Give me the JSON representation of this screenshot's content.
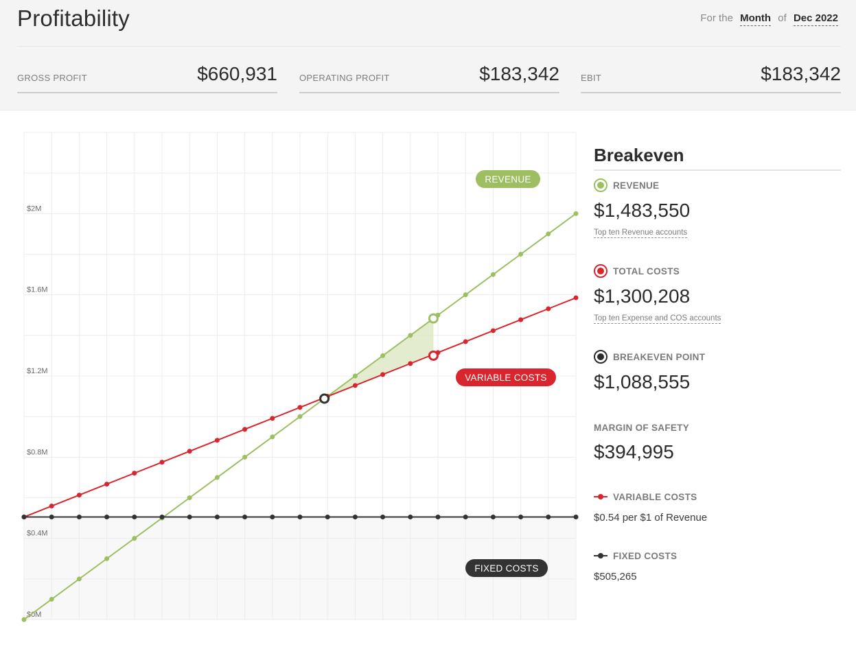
{
  "header": {
    "title": "Profitability",
    "period": {
      "prefix": "For the",
      "unit": "Month",
      "of": "of",
      "date": "Dec 2022"
    },
    "kpis": [
      {
        "label": "GROSS PROFIT",
        "value": "$660,931"
      },
      {
        "label": "OPERATING PROFIT",
        "value": "$183,342"
      },
      {
        "label": "EBIT",
        "value": "$183,342"
      }
    ]
  },
  "sidebar": {
    "title": "Breakeven",
    "revenue": {
      "label": "REVENUE",
      "value": "$1,483,550",
      "link": "Top ten Revenue accounts"
    },
    "total_costs": {
      "label": "TOTAL COSTS",
      "value": "$1,300,208",
      "link": "Top ten Expense and COS accounts"
    },
    "breakeven": {
      "label": "BREAKEVEN POINT",
      "value": "$1,088,555"
    },
    "margin": {
      "label": "MARGIN OF SAFETY",
      "value": "$394,995"
    },
    "variable": {
      "label": "VARIABLE COSTS",
      "note": "$0.54 per $1 of Revenue"
    },
    "fixed": {
      "label": "FIXED COSTS",
      "note": "$505,265"
    }
  },
  "colors": {
    "revenue": "#9dbf62",
    "costs": "#d9262e",
    "fixed": "#333333",
    "shade": "#dfe9c8"
  },
  "chart_data": {
    "type": "line",
    "ylim": [
      0,
      2400000
    ],
    "xlim": [
      0,
      2000000
    ],
    "y_ticks": [
      "$0M",
      "$0.4M",
      "$0.8M",
      "$1.2M",
      "$1.6M",
      "$2M"
    ],
    "y_tick_values": [
      0,
      400000,
      800000,
      1200000,
      1600000,
      2000000
    ],
    "x": [
      0,
      100000,
      200000,
      300000,
      400000,
      500000,
      600000,
      700000,
      800000,
      900000,
      1000000,
      1100000,
      1200000,
      1300000,
      1400000,
      1500000,
      1600000,
      1700000,
      1800000,
      1900000,
      2000000
    ],
    "series": [
      {
        "name": "REVENUE",
        "values": [
          0,
          100000,
          200000,
          300000,
          400000,
          500000,
          600000,
          700000,
          800000,
          900000,
          1000000,
          1100000,
          1200000,
          1300000,
          1400000,
          1500000,
          1600000,
          1700000,
          1800000,
          1900000,
          2000000
        ]
      },
      {
        "name": "VARIABLE COSTS",
        "values": [
          505265,
          559265,
          613265,
          667265,
          721265,
          775265,
          829265,
          883265,
          937265,
          991265,
          1045265,
          1099265,
          1153265,
          1207265,
          1261265,
          1315265,
          1369265,
          1423265,
          1477265,
          1531265,
          1585265
        ]
      },
      {
        "name": "FIXED COSTS",
        "values": [
          505265,
          505265,
          505265,
          505265,
          505265,
          505265,
          505265,
          505265,
          505265,
          505265,
          505265,
          505265,
          505265,
          505265,
          505265,
          505265,
          505265,
          505265,
          505265,
          505265,
          505265
        ]
      }
    ],
    "markers": {
      "breakeven": {
        "x": 1088555,
        "y": 1088555
      },
      "revenue": {
        "x": 1483550,
        "y": 1483550
      },
      "total_costs": {
        "x": 1483550,
        "y": 1300208
      }
    },
    "labels": [
      "REVENUE",
      "VARIABLE COSTS",
      "FIXED COSTS"
    ]
  }
}
